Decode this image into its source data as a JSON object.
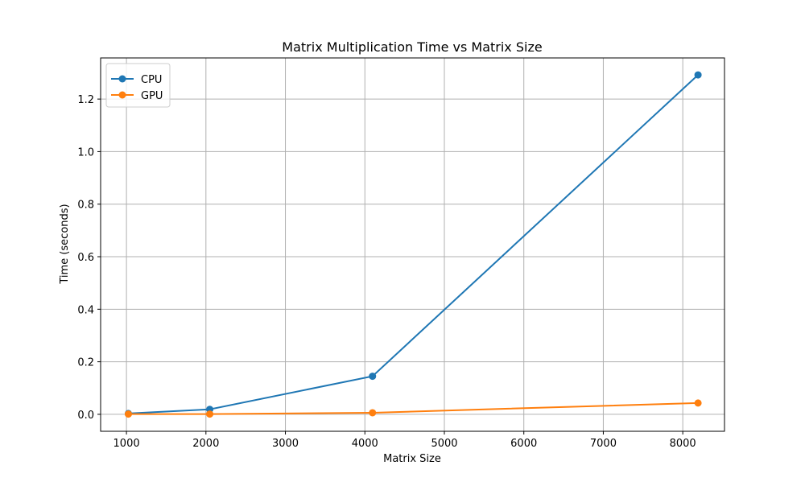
{
  "chart_data": {
    "type": "line",
    "title": "Matrix Multiplication Time vs Matrix Size",
    "xlabel": "Matrix Size",
    "ylabel": "Time (seconds)",
    "xlim": [
      675,
      8525
    ],
    "ylim": [
      -0.0646,
      1.3566
    ],
    "x_ticks": [
      1000,
      2000,
      3000,
      4000,
      5000,
      6000,
      7000,
      8000
    ],
    "y_ticks": [
      0.0,
      0.2,
      0.4,
      0.6,
      0.8,
      1.0,
      1.2
    ],
    "x": [
      1024,
      2048,
      4096,
      8192
    ],
    "series": [
      {
        "name": "CPU",
        "color": "#1f77b4",
        "values": [
          0.003,
          0.019,
          0.145,
          1.292
        ]
      },
      {
        "name": "GPU",
        "color": "#ff7f0e",
        "values": [
          0.001,
          0.001,
          0.006,
          0.043
        ]
      }
    ],
    "grid": true,
    "legend_position": "top-left"
  }
}
